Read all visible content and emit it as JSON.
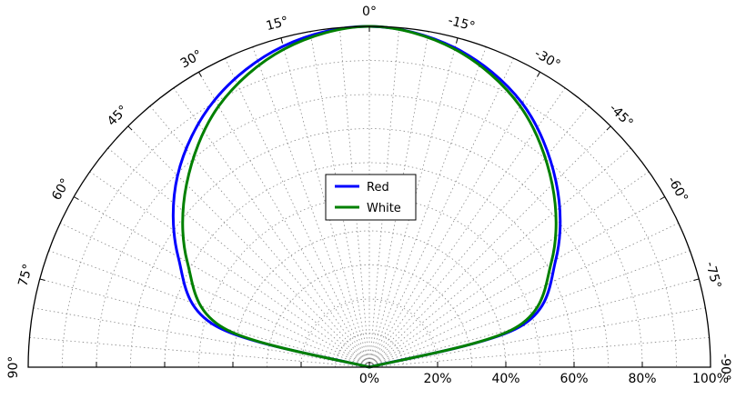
{
  "chart_data": {
    "type": "polar-line",
    "angle_ticks": [
      {
        "label": "90°",
        "angle": 90
      },
      {
        "label": "75°",
        "angle": 75
      },
      {
        "label": "60°",
        "angle": 60
      },
      {
        "label": "45°",
        "angle": 45
      },
      {
        "label": "30°",
        "angle": 30
      },
      {
        "label": "15°",
        "angle": 15
      },
      {
        "label": "0°",
        "angle": 0
      },
      {
        "label": "-15°",
        "angle": -15
      },
      {
        "label": "-30°",
        "angle": -30
      },
      {
        "label": "-45°",
        "angle": -45
      },
      {
        "label": "-60°",
        "angle": -60
      },
      {
        "label": "-75°",
        "angle": -75
      },
      {
        "label": "-90°",
        "angle": -90
      }
    ],
    "radial_ticks": [
      {
        "label": "0%",
        "value": 0
      },
      {
        "label": "20%",
        "value": 20
      },
      {
        "label": "40%",
        "value": 40
      },
      {
        "label": "60%",
        "value": 60
      },
      {
        "label": "80%",
        "value": 80
      },
      {
        "label": "100%",
        "value": 100
      }
    ],
    "angle_range": [
      -90,
      90
    ],
    "radial_range": [
      0,
      100
    ],
    "grid": true,
    "legend_position": "center",
    "series": [
      {
        "name": "Red",
        "color": "#0000ff",
        "points": [
          {
            "angle": 0,
            "value": 100
          },
          {
            "angle": 15,
            "value": 97.5
          },
          {
            "angle": 30,
            "value": 90.6
          },
          {
            "angle": 45,
            "value": 79.5
          },
          {
            "angle": 60,
            "value": 64.7
          },
          {
            "angle": 75,
            "value": 46.5
          },
          {
            "angle": 90,
            "value": 0
          },
          {
            "angle": -15,
            "value": 97
          },
          {
            "angle": -30,
            "value": 89.5
          },
          {
            "angle": -45,
            "value": 77.3
          },
          {
            "angle": -60,
            "value": 63.1
          },
          {
            "angle": -75,
            "value": 45.5
          },
          {
            "angle": -90,
            "value": 0
          }
        ]
      },
      {
        "name": "White",
        "color": "#008000",
        "points": [
          {
            "angle": 0,
            "value": 100
          },
          {
            "angle": 15,
            "value": 96.6
          },
          {
            "angle": 30,
            "value": 88.4
          },
          {
            "angle": 45,
            "value": 75.8
          },
          {
            "angle": 60,
            "value": 61.6
          },
          {
            "angle": 75,
            "value": 44.1
          },
          {
            "angle": 90,
            "value": 0
          },
          {
            "angle": -15,
            "value": 96.6
          },
          {
            "angle": -30,
            "value": 88.4
          },
          {
            "angle": -45,
            "value": 75.8
          },
          {
            "angle": -60,
            "value": 61.6
          },
          {
            "angle": -75,
            "value": 44.1
          },
          {
            "angle": -90,
            "value": 0
          }
        ]
      }
    ]
  }
}
